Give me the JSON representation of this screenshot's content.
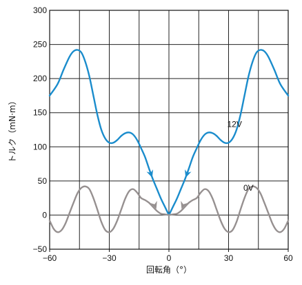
{
  "chart_data": {
    "type": "line",
    "title": "",
    "xlabel": "回転角（°）",
    "ylabel": "トルク（mN·m）",
    "xlim": [
      -60,
      60
    ],
    "ylim": [
      -50,
      300
    ],
    "x_ticks": [
      -60,
      -30,
      0,
      30,
      60
    ],
    "x_tick_labels": [
      "−60",
      "−30",
      "0",
      "30",
      "60"
    ],
    "y_ticks": [
      -50,
      0,
      50,
      100,
      150,
      200,
      250,
      300
    ],
    "y_tick_labels": [
      "−50",
      "0",
      "50",
      "100",
      "150",
      "200",
      "250",
      "300"
    ],
    "grid": true,
    "series": [
      {
        "name": "12V",
        "color": "#1a8ccc",
        "x": [
          -60,
          -56,
          -53,
          -50,
          -48,
          -46,
          -44,
          -42,
          -40,
          -38,
          -36,
          -34,
          -32,
          -30,
          -28,
          -26,
          -24,
          -22,
          -20,
          -18,
          -16,
          -14,
          -12,
          -10,
          -8,
          -6,
          -4,
          -2,
          0,
          2,
          4,
          6,
          8,
          10,
          12,
          14,
          16,
          18,
          20,
          22,
          24,
          26,
          28,
          30,
          32,
          34,
          36,
          38,
          40,
          42,
          44,
          46,
          48,
          50,
          53,
          56,
          60
        ],
        "values": [
          175,
          192,
          213,
          232,
          240,
          242,
          238,
          224,
          203,
          175,
          147,
          125,
          112,
          106,
          106,
          110,
          116,
          120,
          121,
          118,
          110,
          98,
          85,
          68,
          52,
          38,
          24,
          12,
          0,
          12,
          24,
          38,
          52,
          68,
          85,
          98,
          110,
          118,
          121,
          120,
          116,
          110,
          106,
          106,
          112,
          125,
          147,
          175,
          203,
          224,
          238,
          242,
          240,
          232,
          213,
          192,
          175
        ]
      },
      {
        "name": "0V",
        "color": "#969090",
        "x": [
          -60,
          -58,
          -56,
          -54,
          -52,
          -50,
          -48,
          -46,
          -44,
          -42,
          -40,
          -38,
          -36,
          -34,
          -32,
          -30,
          -28,
          -26,
          -24,
          -22,
          -20,
          -18,
          -16,
          -14,
          -12,
          -10,
          -8,
          -6,
          -4,
          -2,
          0,
          2,
          4,
          6,
          8,
          10,
          12,
          14,
          16,
          18,
          20,
          22,
          24,
          26,
          28,
          30,
          32,
          34,
          36,
          38,
          40,
          42,
          44,
          46,
          48,
          50,
          52,
          54,
          56,
          58,
          60
        ],
        "values": [
          -8,
          -20,
          -25,
          -22,
          -12,
          3,
          18,
          32,
          40,
          42,
          38,
          25,
          8,
          -10,
          -22,
          -25,
          -20,
          -8,
          8,
          24,
          35,
          38,
          33,
          25,
          22,
          18,
          12,
          6,
          2,
          1,
          0,
          1,
          2,
          6,
          12,
          18,
          22,
          25,
          33,
          38,
          35,
          24,
          8,
          -8,
          -20,
          -25,
          -22,
          -10,
          8,
          25,
          38,
          42,
          40,
          32,
          18,
          3,
          -12,
          -22,
          -25,
          -20,
          -8
        ]
      }
    ],
    "annotations": [
      {
        "series": "12V",
        "text": "12V",
        "x": 33,
        "y": 133
      },
      {
        "series": "0V",
        "text": "0V",
        "x": 40,
        "y": 40
      }
    ],
    "arrows": [
      {
        "series": "12V",
        "at": [
          -9,
          60
        ],
        "direction": "down-right"
      },
      {
        "series": "12V",
        "at": [
          9,
          60
        ],
        "direction": "down-left"
      },
      {
        "series": "0V",
        "at": [
          -7,
          14
        ],
        "direction": "down-right"
      },
      {
        "series": "0V",
        "at": [
          7,
          14
        ],
        "direction": "down-left"
      }
    ]
  }
}
